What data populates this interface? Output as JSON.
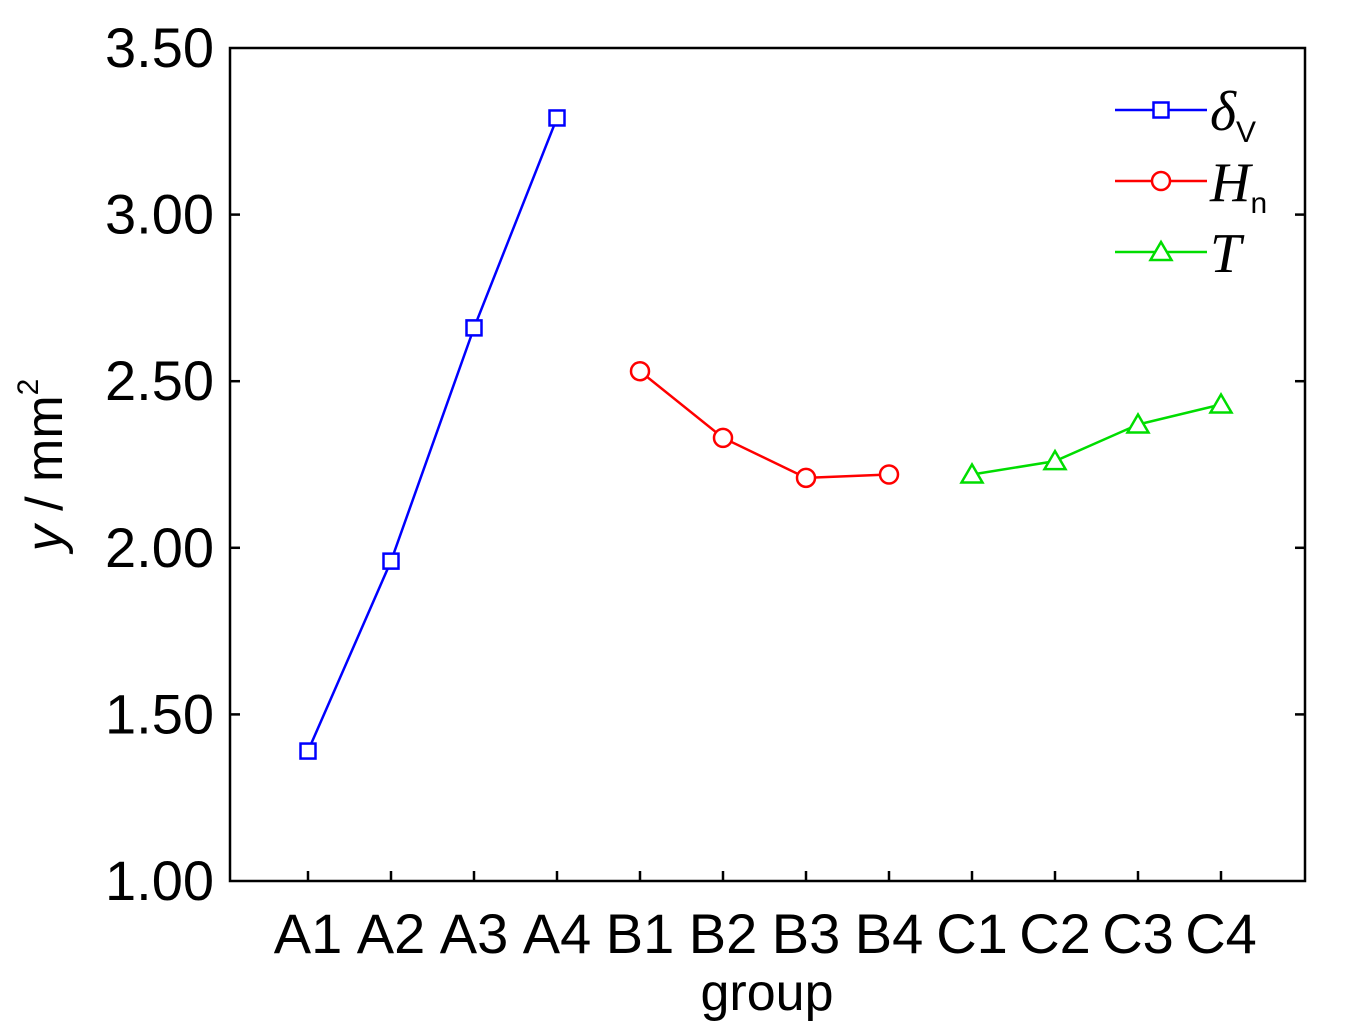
{
  "chart_data": {
    "type": "line",
    "xlabel": "group",
    "ylabel": {
      "base": "y",
      "unit": " / mm",
      "sup": "2"
    },
    "categories": [
      "A1",
      "A2",
      "A3",
      "A4",
      "B1",
      "B2",
      "B3",
      "B4",
      "C1",
      "C2",
      "C3",
      "C4"
    ],
    "ylim": [
      1.0,
      3.5
    ],
    "yticks": [
      "1.00",
      "1.50",
      "2.00",
      "2.50",
      "3.00",
      "3.50"
    ],
    "grid": false,
    "legend_position": "top-right",
    "series": [
      {
        "name": "δ",
        "sub": "V",
        "color": "#0000ff",
        "marker": "square",
        "x": [
          "A1",
          "A2",
          "A3",
          "A4"
        ],
        "values": [
          1.39,
          1.96,
          2.66,
          3.29
        ]
      },
      {
        "name": "H",
        "sub": "n",
        "color": "#ff0000",
        "marker": "circle",
        "x": [
          "B1",
          "B2",
          "B3",
          "B4"
        ],
        "values": [
          2.53,
          2.33,
          2.21,
          2.22
        ]
      },
      {
        "name": "T",
        "sub": "",
        "color": "#00dd00",
        "marker": "triangle",
        "x": [
          "C1",
          "C2",
          "C3",
          "C4"
        ],
        "values": [
          2.22,
          2.26,
          2.37,
          2.43
        ]
      }
    ]
  }
}
